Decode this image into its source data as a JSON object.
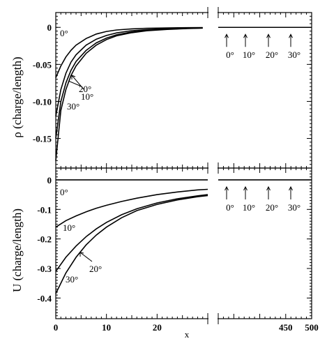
{
  "chart_data": [
    {
      "type": "line",
      "id": "top",
      "ylabel": "ρ (charge/length)",
      "ylim": [
        -0.19,
        0.02
      ],
      "y_ticks": [
        0,
        -0.05,
        -0.1,
        -0.15
      ],
      "y_tick_labels": [
        "0",
        "-0.05",
        "-0.10",
        "-0.15"
      ],
      "x_left_range": [
        0,
        30
      ],
      "x_right_range": [
        320,
        500
      ],
      "series": [
        {
          "name": "0°",
          "x": [
            0,
            1,
            2,
            3,
            4,
            6,
            8,
            10,
            12,
            15,
            18,
            22,
            26,
            29
          ],
          "y": [
            -0.068,
            -0.052,
            -0.04,
            -0.031,
            -0.024,
            -0.015,
            -0.009,
            -0.0055,
            -0.0035,
            -0.002,
            -0.0012,
            -0.0007,
            -0.0004,
            -0.0003
          ]
        },
        {
          "name": "10°",
          "x": [
            0,
            1,
            2,
            3,
            4,
            6,
            8,
            10,
            12,
            15,
            18,
            22,
            26,
            29
          ],
          "y": [
            -0.12,
            -0.084,
            -0.062,
            -0.047,
            -0.037,
            -0.024,
            -0.016,
            -0.011,
            -0.0075,
            -0.0045,
            -0.003,
            -0.0018,
            -0.001,
            -0.0007
          ]
        },
        {
          "name": "20°",
          "x": [
            0,
            1,
            2,
            3,
            4,
            6,
            8,
            10,
            12,
            15,
            18,
            22,
            26,
            29
          ],
          "y": [
            -0.15,
            -0.1,
            -0.075,
            -0.058,
            -0.046,
            -0.031,
            -0.021,
            -0.0145,
            -0.01,
            -0.0062,
            -0.004,
            -0.0024,
            -0.0014,
            -0.0009
          ]
        },
        {
          "name": "30°",
          "x": [
            0,
            1,
            2,
            3,
            4,
            6,
            8,
            10,
            12,
            15,
            18,
            22,
            26,
            29
          ],
          "y": [
            -0.18,
            -0.112,
            -0.084,
            -0.065,
            -0.052,
            -0.035,
            -0.024,
            -0.0165,
            -0.0115,
            -0.0072,
            -0.0046,
            -0.0028,
            -0.0016,
            -0.001
          ]
        }
      ],
      "right_value": 0,
      "labels": [
        "0°",
        "10°",
        "20°",
        "30°"
      ]
    },
    {
      "type": "line",
      "id": "bottom",
      "ylabel": "U (charge/length)",
      "xlabel": "x",
      "ylim": [
        -0.47,
        0.04
      ],
      "y_ticks": [
        0,
        -0.1,
        -0.2,
        -0.3,
        -0.4
      ],
      "y_tick_labels": [
        "0",
        "-0.1",
        "-0.2",
        "-0.3",
        "-0.4"
      ],
      "x_ticks_left": [
        0,
        10,
        20
      ],
      "x_tick_labels_left": [
        "0",
        "10",
        "20"
      ],
      "x_ticks_right": [
        450,
        500
      ],
      "x_tick_labels_right": [
        "450",
        "500"
      ],
      "x_left_range": [
        0,
        30
      ],
      "x_right_range": [
        320,
        500
      ],
      "series": [
        {
          "name": "0°",
          "x": [
            0,
            30
          ],
          "y": [
            0,
            0
          ]
        },
        {
          "name": "10°",
          "x": [
            0,
            2,
            4,
            6,
            8,
            10,
            13,
            16,
            20,
            24,
            28,
            30
          ],
          "y": [
            -0.16,
            -0.138,
            -0.122,
            -0.108,
            -0.096,
            -0.086,
            -0.073,
            -0.062,
            -0.05,
            -0.041,
            -0.034,
            -0.032
          ]
        },
        {
          "name": "20°",
          "x": [
            0,
            2,
            4,
            6,
            8,
            10,
            13,
            16,
            20,
            24,
            28,
            30
          ],
          "y": [
            -0.31,
            -0.262,
            -0.224,
            -0.192,
            -0.166,
            -0.144,
            -0.118,
            -0.098,
            -0.078,
            -0.064,
            -0.054,
            -0.05
          ]
        },
        {
          "name": "30°",
          "x": [
            0,
            2,
            4,
            6,
            8,
            10,
            13,
            16,
            20,
            24,
            28,
            30
          ],
          "y": [
            -0.385,
            -0.315,
            -0.262,
            -0.22,
            -0.187,
            -0.16,
            -0.128,
            -0.104,
            -0.083,
            -0.068,
            -0.057,
            -0.053
          ]
        }
      ],
      "right_value": 0,
      "labels": [
        "0°",
        "10°",
        "20°",
        "30°"
      ]
    }
  ]
}
